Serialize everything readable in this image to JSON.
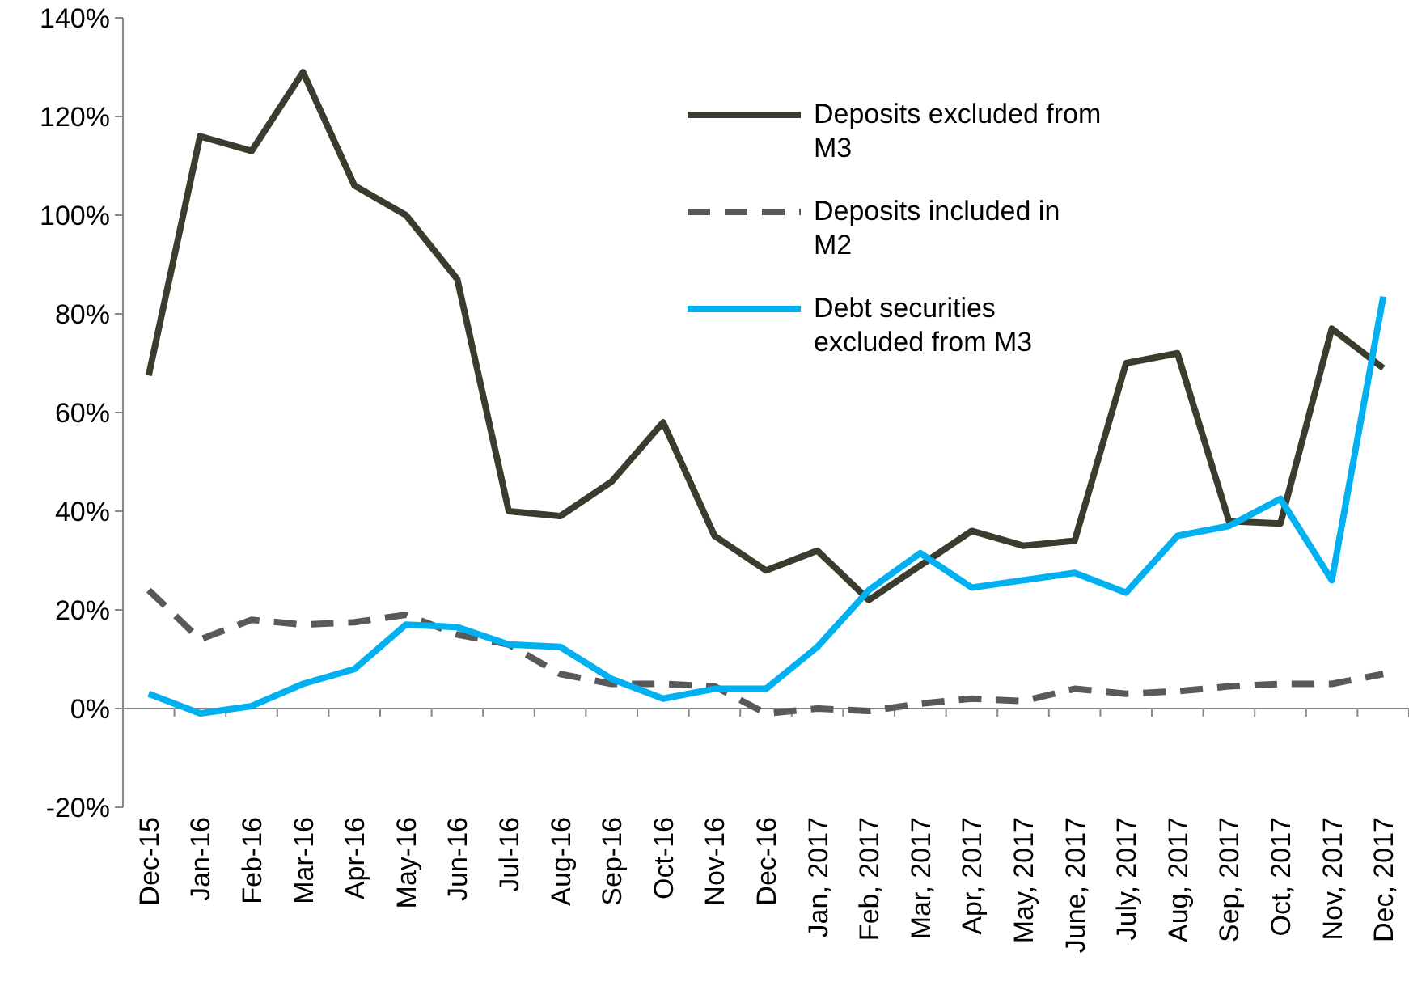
{
  "chart_data": {
    "type": "line",
    "categories": [
      "Dec-15",
      "Jan-16",
      "Feb-16",
      "Mar-16",
      "Apr-16",
      "May-16",
      "Jun-16",
      "Jul-16",
      "Aug-16",
      "Sep-16",
      "Oct-16",
      "Nov-16",
      "Dec-16",
      "Jan, 2017",
      "Feb, 2017",
      "Mar, 2017",
      "Apr, 2017",
      "May, 2017",
      "June, 2017",
      "July, 2017",
      "Aug, 2017",
      "Sep, 2017",
      "Oct, 2017",
      "Nov, 2017",
      "Dec, 2017"
    ],
    "series": [
      {
        "name": "Deposits excluded from M3",
        "color": "#3a3d2e",
        "line_style": "solid",
        "values": [
          67.5,
          116,
          113,
          129,
          106,
          100,
          87,
          40,
          39,
          46,
          58,
          35,
          28,
          32,
          22,
          29,
          36,
          33,
          34,
          70,
          72,
          38,
          37.5,
          77,
          69
        ]
      },
      {
        "name": "Deposits included in M2",
        "color": "#595959",
        "line_style": "dashed",
        "values": [
          24,
          14,
          18,
          17,
          17.5,
          19,
          15,
          13,
          7,
          5,
          5,
          4.5,
          -1,
          0,
          -0.5,
          1,
          2,
          1.5,
          4,
          3,
          3.5,
          4.5,
          5,
          5,
          7
        ]
      },
      {
        "name": "Debt securities excluded from M3",
        "color": "#00b0f0",
        "line_style": "solid",
        "values": [
          3,
          -1,
          0.5,
          5,
          8,
          17,
          16.5,
          13,
          12.5,
          6,
          2,
          4,
          4,
          12.5,
          24,
          31.5,
          24.5,
          26,
          27.5,
          23.5,
          35,
          37,
          42.5,
          26,
          83.5
        ]
      }
    ],
    "ylim": [
      -20,
      140
    ],
    "yticks": [
      {
        "value": -20,
        "label": "-20%"
      },
      {
        "value": 0,
        "label": "0%"
      },
      {
        "value": 20,
        "label": "20%"
      },
      {
        "value": 40,
        "label": "40%"
      },
      {
        "value": 60,
        "label": "60%"
      },
      {
        "value": 80,
        "label": "80%"
      },
      {
        "value": 100,
        "label": "100%"
      },
      {
        "value": 120,
        "label": "120%"
      },
      {
        "value": 140,
        "label": "140%"
      }
    ],
    "legend": "top right",
    "marker": "none"
  }
}
